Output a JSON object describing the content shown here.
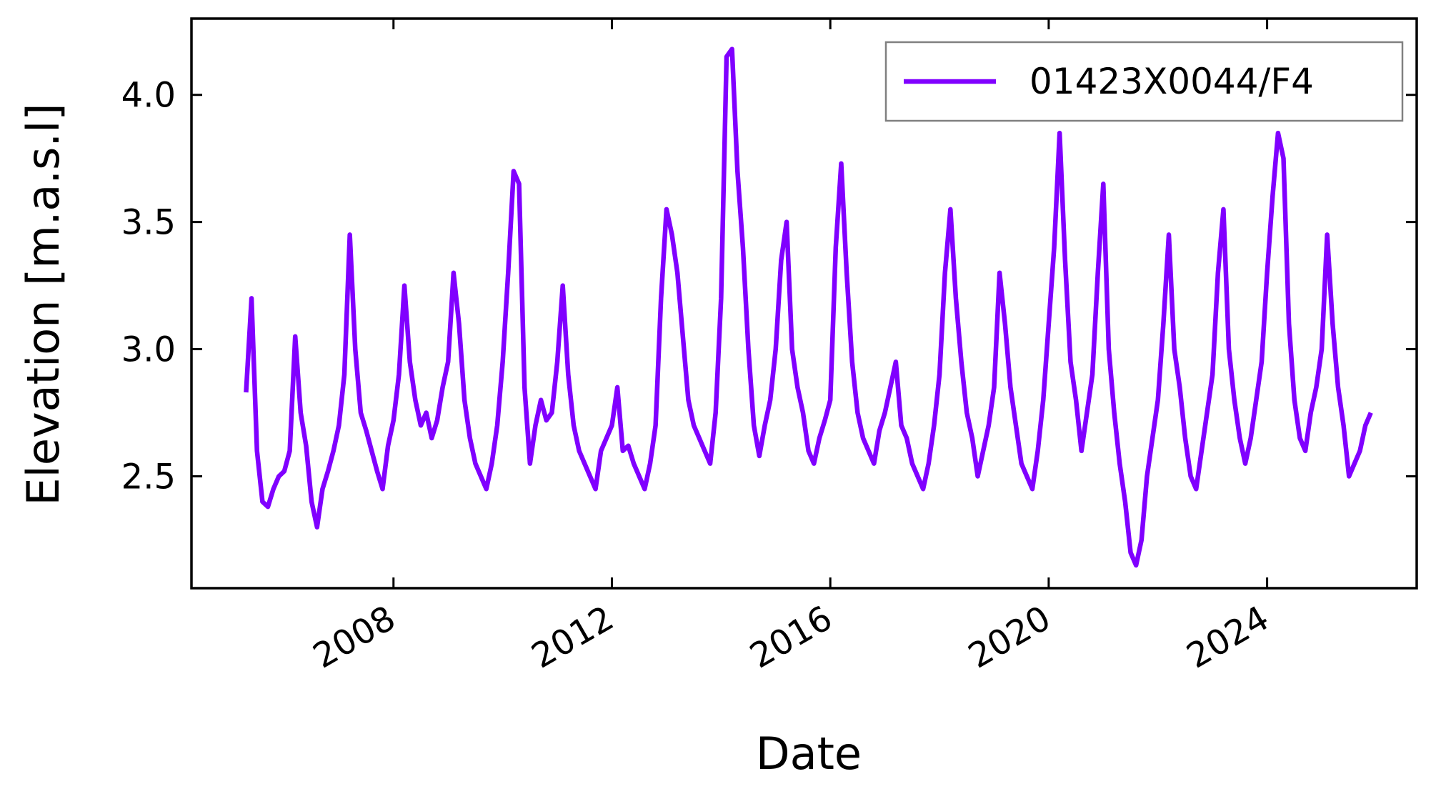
{
  "chart_data": {
    "type": "line",
    "x_label": "Date",
    "y_label": "Elevation [m.a.s.l]",
    "x": [
      2005.3,
      2005.4,
      2005.5,
      2005.6,
      2005.7,
      2005.8,
      2005.9,
      2006.0,
      2006.1,
      2006.2,
      2006.3,
      2006.4,
      2006.5,
      2006.6,
      2006.7,
      2006.8,
      2006.9,
      2007.0,
      2007.1,
      2007.2,
      2007.3,
      2007.4,
      2007.5,
      2007.6,
      2007.7,
      2007.8,
      2007.9,
      2008.0,
      2008.1,
      2008.2,
      2008.3,
      2008.4,
      2008.5,
      2008.6,
      2008.7,
      2008.8,
      2008.9,
      2009.0,
      2009.1,
      2009.2,
      2009.3,
      2009.4,
      2009.5,
      2009.6,
      2009.7,
      2009.8,
      2009.9,
      2010.0,
      2010.1,
      2010.2,
      2010.3,
      2010.4,
      2010.5,
      2010.6,
      2010.7,
      2010.8,
      2010.9,
      2011.0,
      2011.1,
      2011.2,
      2011.3,
      2011.4,
      2011.5,
      2011.6,
      2011.7,
      2011.8,
      2011.9,
      2012.0,
      2012.1,
      2012.2,
      2012.3,
      2012.4,
      2012.5,
      2012.6,
      2012.7,
      2012.8,
      2012.9,
      2013.0,
      2013.1,
      2013.2,
      2013.3,
      2013.4,
      2013.5,
      2013.6,
      2013.7,
      2013.8,
      2013.9,
      2014.0,
      2014.1,
      2014.2,
      2014.3,
      2014.4,
      2014.5,
      2014.6,
      2014.7,
      2014.8,
      2014.9,
      2015.0,
      2015.1,
      2015.2,
      2015.3,
      2015.4,
      2015.5,
      2015.6,
      2015.7,
      2015.8,
      2015.9,
      2016.0,
      2016.1,
      2016.2,
      2016.3,
      2016.4,
      2016.5,
      2016.6,
      2016.7,
      2016.8,
      2016.9,
      2017.0,
      2017.1,
      2017.2,
      2017.3,
      2017.4,
      2017.5,
      2017.6,
      2017.7,
      2017.8,
      2017.9,
      2018.0,
      2018.1,
      2018.2,
      2018.3,
      2018.4,
      2018.5,
      2018.6,
      2018.7,
      2018.8,
      2018.9,
      2019.0,
      2019.1,
      2019.2,
      2019.3,
      2019.4,
      2019.5,
      2019.6,
      2019.7,
      2019.8,
      2019.9,
      2020.0,
      2020.1,
      2020.2,
      2020.3,
      2020.4,
      2020.5,
      2020.6,
      2020.7,
      2020.8,
      2020.9,
      2021.0,
      2021.1,
      2021.2,
      2021.3,
      2021.4,
      2021.5,
      2021.6,
      2021.7,
      2021.8,
      2021.9,
      2022.0,
      2022.1,
      2022.2,
      2022.3,
      2022.4,
      2022.5,
      2022.6,
      2022.7,
      2022.8,
      2022.9,
      2023.0,
      2023.1,
      2023.2,
      2023.3,
      2023.4,
      2023.5,
      2023.6,
      2023.7,
      2023.8,
      2023.9,
      2024.0,
      2024.1,
      2024.2,
      2024.3,
      2024.4,
      2024.5,
      2024.6,
      2024.7,
      2024.8,
      2024.9,
      2025.0,
      2025.1,
      2025.2,
      2025.3,
      2025.4,
      2025.5,
      2025.6,
      2025.7,
      2025.8,
      2025.9
    ],
    "series": [
      {
        "name": "01423X0044/F4",
        "color": "#8000ff",
        "values": [
          2.83,
          3.2,
          2.6,
          2.4,
          2.38,
          2.45,
          2.5,
          2.52,
          2.6,
          3.05,
          2.75,
          2.62,
          2.4,
          2.3,
          2.45,
          2.52,
          2.6,
          2.7,
          2.9,
          3.45,
          3.0,
          2.75,
          2.68,
          2.6,
          2.52,
          2.45,
          2.62,
          2.72,
          2.9,
          3.25,
          2.95,
          2.8,
          2.7,
          2.75,
          2.65,
          2.72,
          2.85,
          2.95,
          3.3,
          3.1,
          2.8,
          2.65,
          2.55,
          2.5,
          2.45,
          2.55,
          2.7,
          2.95,
          3.3,
          3.7,
          3.65,
          2.85,
          2.55,
          2.7,
          2.8,
          2.72,
          2.75,
          2.95,
          3.25,
          2.9,
          2.7,
          2.6,
          2.55,
          2.5,
          2.45,
          2.6,
          2.65,
          2.7,
          2.85,
          2.6,
          2.62,
          2.55,
          2.5,
          2.45,
          2.55,
          2.7,
          3.2,
          3.55,
          3.45,
          3.3,
          3.05,
          2.8,
          2.7,
          2.65,
          2.6,
          2.55,
          2.75,
          3.2,
          4.15,
          4.18,
          3.7,
          3.4,
          3.0,
          2.7,
          2.58,
          2.7,
          2.8,
          3.0,
          3.35,
          3.5,
          3.0,
          2.85,
          2.75,
          2.6,
          2.55,
          2.65,
          2.72,
          2.8,
          3.4,
          3.73,
          3.3,
          2.95,
          2.75,
          2.65,
          2.6,
          2.55,
          2.68,
          2.75,
          2.85,
          2.95,
          2.7,
          2.65,
          2.55,
          2.5,
          2.45,
          2.55,
          2.7,
          2.9,
          3.3,
          3.55,
          3.2,
          2.95,
          2.75,
          2.65,
          2.5,
          2.6,
          2.7,
          2.85,
          3.3,
          3.1,
          2.85,
          2.7,
          2.55,
          2.5,
          2.45,
          2.6,
          2.8,
          3.1,
          3.4,
          3.85,
          3.35,
          2.95,
          2.8,
          2.6,
          2.75,
          2.9,
          3.3,
          3.65,
          3.0,
          2.75,
          2.55,
          2.4,
          2.2,
          2.15,
          2.25,
          2.5,
          2.65,
          2.8,
          3.1,
          3.45,
          3.0,
          2.85,
          2.65,
          2.5,
          2.45,
          2.6,
          2.75,
          2.9,
          3.3,
          3.55,
          3.0,
          2.8,
          2.65,
          2.55,
          2.65,
          2.8,
          2.95,
          3.3,
          3.6,
          3.85,
          3.75,
          3.1,
          2.8,
          2.65,
          2.6,
          2.75,
          2.85,
          3.0,
          3.45,
          3.1,
          2.85,
          2.7,
          2.5,
          2.55,
          2.6,
          2.7,
          2.75
        ]
      }
    ],
    "xlim": [
      2004.3,
      2026.74
    ],
    "xticks": [
      2008,
      2012,
      2016,
      2020,
      2024
    ],
    "ylim": [
      2.06,
      4.3
    ],
    "yticks": [
      2.5,
      {
        "value": 3,
        "label": "3.0"
      },
      3.5,
      {
        "value": 4,
        "label": "4.0"
      }
    ],
    "legend": "upper right"
  }
}
